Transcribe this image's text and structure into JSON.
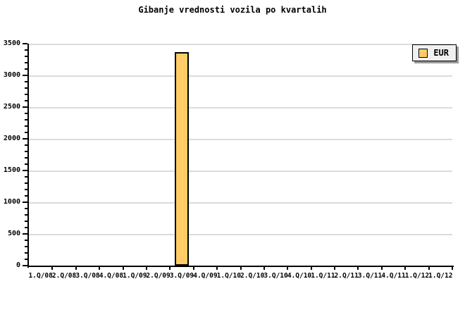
{
  "title": "Gibanje vrednosti vozila po kvartalih",
  "chart_data": {
    "type": "bar",
    "title": "Gibanje vrednosti vozila po kvartalih",
    "categories": [
      "1.Q/08",
      "2.Q/08",
      "3.Q/08",
      "4.Q/08",
      "1.Q/09",
      "2.Q/09",
      "3.Q/09",
      "4.Q/09",
      "1.Q/10",
      "2.Q/10",
      "3.Q/10",
      "4.Q/10",
      "1.Q/11",
      "2.Q/11",
      "3.Q/11",
      "4.Q/11",
      "1.Q/12",
      "1.Q/12"
    ],
    "series": [
      {
        "name": "EUR",
        "color": "#FFCC66",
        "border_color": "#000000",
        "values": [
          null,
          null,
          null,
          null,
          null,
          null,
          3370,
          null,
          null,
          null,
          null,
          null,
          null,
          null,
          null,
          null,
          null,
          null
        ]
      }
    ],
    "xlabel": "",
    "ylabel": "",
    "ylim": [
      0,
      3500
    ],
    "y_major_step": 500,
    "y_minor_step": 100,
    "y_tick_labels": [
      "0",
      "500",
      "1000",
      "1500",
      "2000",
      "2500",
      "3000",
      "3500"
    ],
    "grid": "horizontal-major",
    "gridline_color": "#DCDCDC",
    "background_color": "#FFFFFF",
    "legend": {
      "position": "top-right",
      "entries": [
        {
          "label": "EUR",
          "swatch_color": "#FFCC66"
        }
      ]
    }
  }
}
